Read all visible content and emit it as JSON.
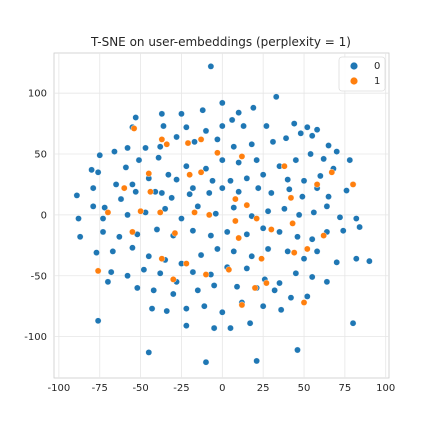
{
  "chart_data": {
    "type": "scatter",
    "title": "T-SNE on user-embeddings (perplexity = 1)",
    "xlabel": "",
    "ylabel": "",
    "xlim": [
      -103,
      102
    ],
    "ylim": [
      -134,
      133
    ],
    "xticks": [
      -100,
      -75,
      -50,
      -25,
      0,
      25,
      50,
      75,
      100
    ],
    "yticks": [
      -100,
      -50,
      0,
      50,
      100
    ],
    "grid": true,
    "legend_position": "top-right",
    "colors": {
      "0": "#1f77b4",
      "1": "#ff7f0e"
    },
    "series": [
      {
        "name": "0",
        "points": [
          [
            -7,
            122
          ],
          [
            33,
            97
          ],
          [
            19,
            88
          ],
          [
            -53,
            80
          ],
          [
            -37,
            83
          ],
          [
            -25,
            83
          ],
          [
            -12,
            86
          ],
          [
            0,
            92
          ],
          [
            10,
            84
          ],
          [
            6,
            78
          ],
          [
            -55,
            72
          ],
          [
            -36,
            73
          ],
          [
            -22,
            72
          ],
          [
            -10,
            69
          ],
          [
            0,
            73
          ],
          [
            13,
            73
          ],
          [
            27,
            73
          ],
          [
            44,
            75
          ],
          [
            52,
            72
          ],
          [
            58,
            70
          ],
          [
            -75,
            49
          ],
          [
            -66,
            52
          ],
          [
            -58,
            55
          ],
          [
            -47,
            55
          ],
          [
            -38,
            56
          ],
          [
            -28,
            64
          ],
          [
            -17,
            60
          ],
          [
            -3,
            62
          ],
          [
            7,
            56
          ],
          [
            18,
            58
          ],
          [
            31,
            60
          ],
          [
            39,
            63
          ],
          [
            48,
            67
          ],
          [
            55,
            65
          ],
          [
            65,
            57
          ],
          [
            -76,
            35
          ],
          [
            -80,
            37
          ],
          [
            -59,
            39
          ],
          [
            -51,
            45
          ],
          [
            -39,
            47
          ],
          [
            -33,
            33
          ],
          [
            -22,
            40
          ],
          [
            -10,
            38
          ],
          [
            0,
            45
          ],
          [
            10,
            43
          ],
          [
            21,
            45
          ],
          [
            35,
            40
          ],
          [
            45,
            45
          ],
          [
            54,
            50
          ],
          [
            62,
            46
          ],
          [
            70,
            52
          ],
          [
            78,
            45
          ],
          [
            -89,
            16
          ],
          [
            -79,
            22
          ],
          [
            -65,
            25
          ],
          [
            -55,
            25
          ],
          [
            -45,
            30
          ],
          [
            -37,
            18
          ],
          [
            -28,
            29
          ],
          [
            -18,
            22
          ],
          [
            -6,
            28
          ],
          [
            5,
            28
          ],
          [
            15,
            30
          ],
          [
            25,
            33
          ],
          [
            40,
            29
          ],
          [
            50,
            28
          ],
          [
            60,
            32
          ],
          [
            68,
            38
          ],
          [
            80,
            25
          ],
          [
            -79,
            7
          ],
          [
            -72,
            6
          ],
          [
            -62,
            13
          ],
          [
            -53,
            19
          ],
          [
            -41,
            19
          ],
          [
            -31,
            14
          ],
          [
            -20,
            17
          ],
          [
            -8,
            18
          ],
          [
            0,
            22
          ],
          [
            10,
            19
          ],
          [
            22,
            22
          ],
          [
            30,
            18
          ],
          [
            41,
            21
          ],
          [
            49,
            15
          ],
          [
            58,
            22
          ],
          [
            65,
            15
          ],
          [
            76,
            20
          ],
          [
            -88,
            -3
          ],
          [
            -73,
            -3
          ],
          [
            -58,
            0
          ],
          [
            -47,
            2
          ],
          [
            -35,
            5
          ],
          [
            -25,
            -3
          ],
          [
            -15,
            7
          ],
          [
            -4,
            1
          ],
          [
            7,
            6
          ],
          [
            18,
            -1
          ],
          [
            28,
            3
          ],
          [
            38,
            5
          ],
          [
            47,
            0
          ],
          [
            56,
            2
          ],
          [
            64,
            7
          ],
          [
            72,
            -2
          ],
          [
            82,
            -3
          ],
          [
            -87,
            -18
          ],
          [
            -73,
            -14
          ],
          [
            -63,
            -18
          ],
          [
            -52,
            -16
          ],
          [
            -40,
            -12
          ],
          [
            -30,
            -17
          ],
          [
            -18,
            -13
          ],
          [
            -7,
            -17
          ],
          [
            3,
            -14
          ],
          [
            15,
            -16
          ],
          [
            25,
            -11
          ],
          [
            35,
            -14
          ],
          [
            46,
            -18
          ],
          [
            55,
            -20
          ],
          [
            64,
            -14
          ],
          [
            74,
            -13
          ],
          [
            84,
            -10
          ],
          [
            -77,
            -31
          ],
          [
            -67,
            -30
          ],
          [
            -55,
            -27
          ],
          [
            -45,
            -34
          ],
          [
            -35,
            -37
          ],
          [
            -25,
            -40
          ],
          [
            -13,
            -33
          ],
          [
            -3,
            -28
          ],
          [
            7,
            -30
          ],
          [
            18,
            -34
          ],
          [
            28,
            -28
          ],
          [
            40,
            -30
          ],
          [
            50,
            -36
          ],
          [
            58,
            -30
          ],
          [
            70,
            -39
          ],
          [
            82,
            -36
          ],
          [
            90,
            -38
          ],
          [
            -68,
            -47
          ],
          [
            -58,
            -50
          ],
          [
            -48,
            -45
          ],
          [
            -38,
            -48
          ],
          [
            -28,
            -55
          ],
          [
            -18,
            -47
          ],
          [
            -7,
            -49
          ],
          [
            3,
            -43
          ],
          [
            15,
            -44
          ],
          [
            26,
            -53
          ],
          [
            35,
            -56
          ],
          [
            45,
            -48
          ],
          [
            55,
            -51
          ],
          [
            64,
            -55
          ],
          [
            -70,
            -55
          ],
          [
            -52,
            -60
          ],
          [
            -42,
            -62
          ],
          [
            -30,
            -65
          ],
          [
            -15,
            -62
          ],
          [
            -5,
            -58
          ],
          [
            9,
            -59
          ],
          [
            21,
            -60
          ],
          [
            32,
            -62
          ],
          [
            42,
            -68
          ],
          [
            52,
            -67
          ],
          [
            -43,
            -77
          ],
          [
            -34,
            -79
          ],
          [
            -22,
            -77
          ],
          [
            -11,
            -75
          ],
          [
            0,
            -80
          ],
          [
            12,
            -72
          ],
          [
            25,
            -75
          ],
          [
            36,
            -78
          ],
          [
            -76,
            -87
          ],
          [
            -22,
            -91
          ],
          [
            -5,
            -93
          ],
          [
            5,
            -93
          ],
          [
            17,
            -89
          ],
          [
            80,
            -89
          ],
          [
            -45,
            -113
          ],
          [
            -10,
            -121
          ],
          [
            21,
            -120
          ],
          [
            46,
            -111
          ]
        ]
      },
      {
        "name": "1",
        "points": [
          [
            -54,
            71
          ],
          [
            -37,
            62
          ],
          [
            -34,
            58
          ],
          [
            -21,
            59
          ],
          [
            -13,
            62
          ],
          [
            -3,
            51
          ],
          [
            -45,
            34
          ],
          [
            -20,
            33
          ],
          [
            12,
            48
          ],
          [
            38,
            40
          ],
          [
            -60,
            22
          ],
          [
            -44,
            19
          ],
          [
            -13,
            35
          ],
          [
            8,
            13
          ],
          [
            15,
            8
          ],
          [
            42,
            14
          ],
          [
            -70,
            2
          ],
          [
            -50,
            3
          ],
          [
            -38,
            2
          ],
          [
            -17,
            2
          ],
          [
            -8,
            0
          ],
          [
            8,
            -5
          ],
          [
            21,
            -3
          ],
          [
            43,
            -7
          ],
          [
            -55,
            -14
          ],
          [
            -29,
            -15
          ],
          [
            10,
            -19
          ],
          [
            30,
            -12
          ],
          [
            62,
            -17
          ],
          [
            -37,
            -36
          ],
          [
            -22,
            -40
          ],
          [
            4,
            -45
          ],
          [
            24,
            -36
          ],
          [
            44,
            -31
          ],
          [
            52,
            -28
          ],
          [
            -30,
            -53
          ],
          [
            -10,
            -49
          ],
          [
            20,
            -60
          ],
          [
            -76,
            -46
          ],
          [
            12,
            -74
          ],
          [
            50,
            -72
          ],
          [
            27,
            -56
          ],
          [
            67,
            35
          ],
          [
            80,
            25
          ],
          [
            58,
            25
          ]
        ]
      }
    ]
  }
}
